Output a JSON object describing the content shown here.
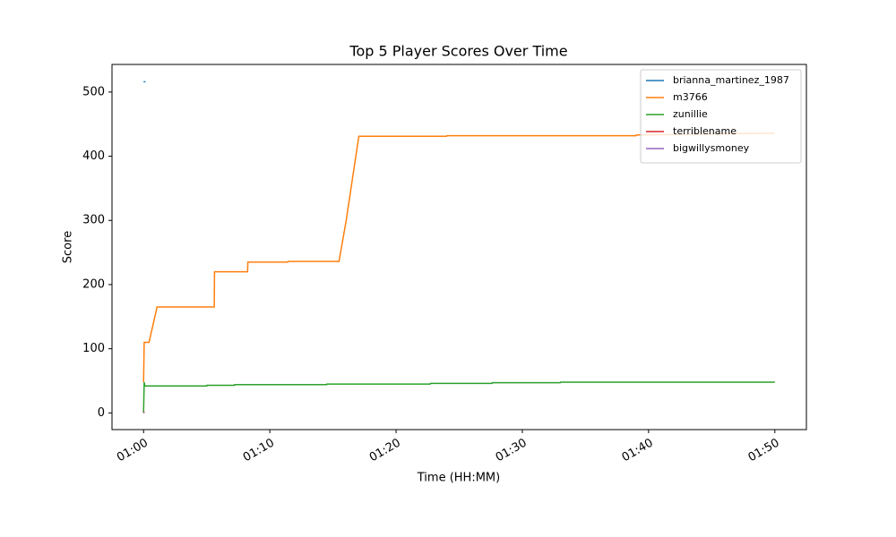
{
  "chart_data": {
    "type": "line",
    "title": "Top 5 Player Scores Over Time",
    "xlabel": "Time (HH:MM)",
    "ylabel": "Score",
    "xlim": [
      -2.5,
      52.5
    ],
    "ylim": [
      -26,
      543
    ],
    "xticks": [
      {
        "value": 0,
        "label": "01:00"
      },
      {
        "value": 10,
        "label": "01:10"
      },
      {
        "value": 20,
        "label": "01:20"
      },
      {
        "value": 30,
        "label": "01:30"
      },
      {
        "value": 40,
        "label": "01:40"
      },
      {
        "value": 50,
        "label": "01:50"
      }
    ],
    "yticks": [
      0,
      100,
      200,
      300,
      400,
      500
    ],
    "legend": "upper right",
    "series": [
      {
        "name": "brianna_martinez_1987",
        "color": "#1f77b4",
        "x": [
          0,
          0.15
        ],
        "values": [
          516,
          516
        ]
      },
      {
        "name": "m3766",
        "color": "#ff7f0e",
        "x": [
          0,
          0.05,
          0.1,
          0.43,
          0.64,
          1.07,
          5.6,
          5.62,
          8.24,
          8.26,
          11.43,
          11.45,
          15.48,
          16.05,
          17.05,
          24,
          24.02,
          39,
          39.02,
          50
        ],
        "values": [
          48,
          110,
          110,
          110,
          128,
          165,
          165,
          220,
          220,
          235,
          235,
          236,
          236,
          300,
          431,
          431,
          432,
          432,
          433,
          436
        ]
      },
      {
        "name": "zunillie",
        "color": "#2ca02c",
        "x": [
          0,
          0.05,
          0.1,
          5,
          5.02,
          7.2,
          7.22,
          14.5,
          14.52,
          22.7,
          22.72,
          27.6,
          27.62,
          33,
          33.02,
          50
        ],
        "values": [
          0,
          48,
          42,
          42,
          43,
          43,
          44,
          44,
          45,
          45,
          46,
          46,
          47,
          47,
          48,
          48
        ]
      },
      {
        "name": "terriblename",
        "color": "#d62728",
        "x": [
          0,
          0.05
        ],
        "values": [
          0,
          2
        ]
      },
      {
        "name": "bigwillysmoney",
        "color": "#9467bd",
        "x": [
          0,
          0.05
        ],
        "values": [
          0,
          1
        ]
      }
    ]
  }
}
